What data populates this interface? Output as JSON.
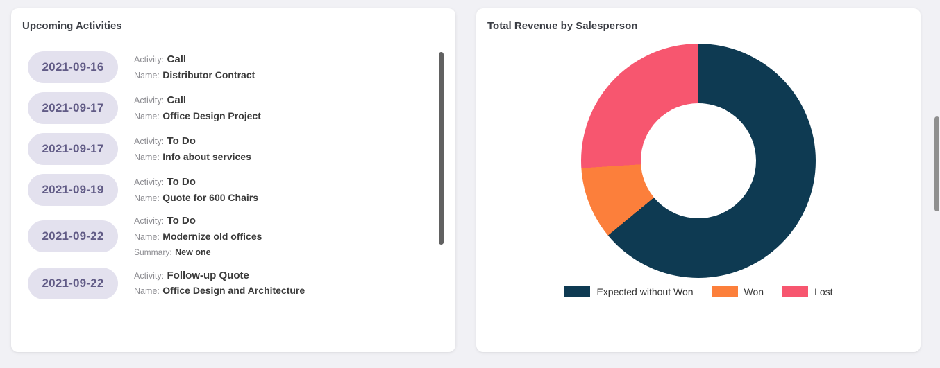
{
  "activities": {
    "title": "Upcoming Activities",
    "labels": {
      "activity": "Activity:",
      "name": "Name:",
      "summary": "Summary:"
    },
    "items": [
      {
        "date": "2021-09-16",
        "activity": "Call",
        "name": "Distributor Contract"
      },
      {
        "date": "2021-09-17",
        "activity": "Call",
        "name": "Office Design Project"
      },
      {
        "date": "2021-09-17",
        "activity": "To Do",
        "name": "Info about services"
      },
      {
        "date": "2021-09-19",
        "activity": "To Do",
        "name": "Quote for 600 Chairs"
      },
      {
        "date": "2021-09-22",
        "activity": "To Do",
        "name": "Modernize old offices",
        "summary": "New one"
      },
      {
        "date": "2021-09-22",
        "activity": "Follow-up Quote",
        "name": "Office Design and Architecture"
      }
    ]
  },
  "revenue": {
    "title": "Total Revenue by Salesperson"
  },
  "chart_data": {
    "type": "pie",
    "donut": true,
    "title": "Total Revenue by Salesperson",
    "categories": [
      "Expected without Won",
      "Won",
      "Lost"
    ],
    "values": [
      64,
      10,
      26
    ],
    "colors": [
      "#0e3a52",
      "#fc7f3b",
      "#f7566f"
    ],
    "legend_position": "bottom",
    "start_angle_deg": 0
  },
  "colors": {
    "date_pill_bg": "#e3e1ee",
    "date_pill_text": "#615b86"
  }
}
